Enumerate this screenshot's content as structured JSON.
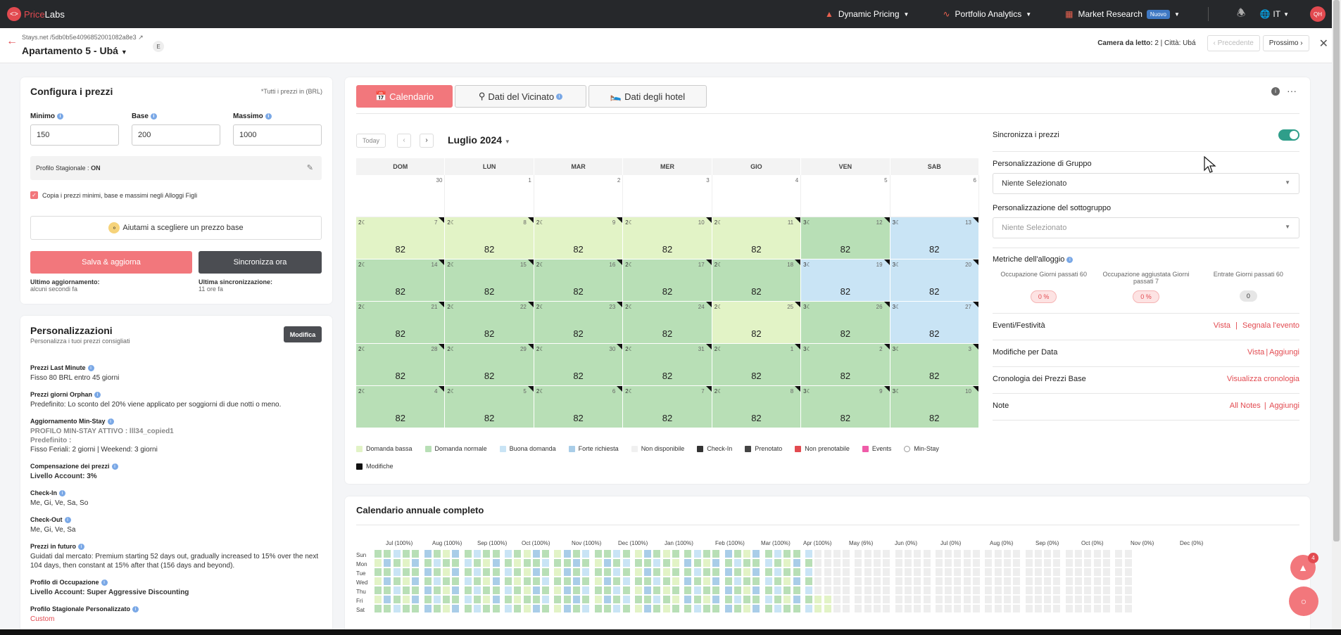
{
  "topbar": {
    "brand_a": "Price",
    "brand_b": "Labs",
    "nav": [
      {
        "icon": "fire-icon",
        "label": "Dynamic Pricing"
      },
      {
        "icon": "chart-line-icon",
        "label": "Portfolio Analytics"
      },
      {
        "icon": "grid-icon",
        "label": "Market Research",
        "badge": "Nuovo"
      }
    ],
    "lang": "IT",
    "avatar": "QH"
  },
  "subheader": {
    "listing_link": "Stays.net /5db0b5e4096852001082a8e3",
    "listing_name": "Apartamento 5 - Ubá",
    "badge": "E",
    "meta_label": "Camera da letto:",
    "meta_value": "2 | Città: Ubá",
    "prev": "Precedente",
    "next": "Prossimo"
  },
  "config": {
    "title": "Configura i prezzi",
    "note": "*Tutti i prezzi in (BRL)",
    "min_label": "Minimo",
    "min_value": "150",
    "base_label": "Base",
    "base_value": "200",
    "max_label": "Massimo",
    "max_value": "1000",
    "season_label": "Profilo Stagionale :",
    "season_value": "ON",
    "copy_label": "Copia i prezzi minimi, base e massimi negli Alloggi Figli",
    "help_label": "Aiutami a scegliere un prezzo base",
    "save_label": "Salva & aggiorna",
    "sync_label": "Sincronizza ora",
    "last_update_label": "Ultimo aggiornamento:",
    "last_update_value": "alcuni secondi fa",
    "last_sync_label": "Ultima sincronizzazione:",
    "last_sync_value": "11 ore fa"
  },
  "custom": {
    "title": "Personalizzazioni",
    "subtitle": "Personalizza i tuoi prezzi consigliati",
    "edit": "Modifica",
    "items": [
      {
        "label": "Prezzi Last Minute",
        "lines": [
          "Fisso 80 BRL entro 45 giorni"
        ]
      },
      {
        "label": "Prezzi giorni Orphan",
        "lines": [
          "Predefinito: Lo sconto del 20% viene applicato per soggiorni di due notti o meno."
        ]
      },
      {
        "label": "Aggiornamento Min-Stay",
        "lines": [
          "PROFILO MIN-STAY ATTIVO : lll34_copied1",
          "Predefinito :",
          "Fisso Feriali: 2 giorni | Weekend: 3 giorni"
        ]
      },
      {
        "label": "Compensazione dei prezzi",
        "lines": [
          "Livello Account: 3%"
        ]
      },
      {
        "label": "Check-In",
        "lines": [
          "Me, Gi, Ve, Sa, So"
        ]
      },
      {
        "label": "Check-Out",
        "lines": [
          "Me, Gi, Ve, Sa"
        ]
      },
      {
        "label": "Prezzi in futuro",
        "lines": [
          "Guidati dal mercato: Premium starting 52 days out, gradually increased to 15% over the next 104 days, then constant at 15% after that (156 days and beyond)."
        ]
      },
      {
        "label": "Profilo di Occupazione",
        "lines": [
          "Livello Account: Super Aggressive Discounting"
        ]
      },
      {
        "label": "Profilo Stagionale Personalizzato",
        "lines": [
          "Custom"
        ]
      }
    ]
  },
  "tabs": [
    {
      "icon": "calendar-icon",
      "label": "Calendario"
    },
    {
      "icon": "pin-icon",
      "label": "Dati del Vicinato"
    },
    {
      "icon": "bed-icon",
      "label": "Dati degli hotel"
    }
  ],
  "calendar": {
    "today": "Today",
    "month": "Luglio 2024",
    "days": [
      "DOM",
      "LUN",
      "MAR",
      "MER",
      "GIO",
      "VEN",
      "SAB"
    ],
    "colors": {
      "low": "#e2f3c6",
      "normal": "#b8dfb6",
      "good": "#c9e4f5",
      "strong": "#a9cde8",
      "na": "#f0f0f0"
    },
    "weeks": [
      [
        {
          "d": "30",
          "t": "empty"
        },
        {
          "d": "1",
          "t": "empty"
        },
        {
          "d": "2",
          "t": "empty"
        },
        {
          "d": "3",
          "t": "empty"
        },
        {
          "d": "4",
          "t": "empty"
        },
        {
          "d": "5",
          "t": "empty"
        },
        {
          "d": "6",
          "t": "empty"
        }
      ],
      [
        {
          "d": "7",
          "t": "low",
          "ms": "2",
          "p": "82"
        },
        {
          "d": "8",
          "t": "low",
          "ms": "2",
          "p": "82"
        },
        {
          "d": "9",
          "t": "low",
          "ms": "2",
          "p": "82"
        },
        {
          "d": "10",
          "t": "low",
          "ms": "2",
          "p": "82"
        },
        {
          "d": "11",
          "t": "low",
          "ms": "2",
          "p": "82"
        },
        {
          "d": "12",
          "t": "normal",
          "ms": "3",
          "p": "82"
        },
        {
          "d": "13",
          "t": "good",
          "ms": "3",
          "p": "82"
        }
      ],
      [
        {
          "d": "14",
          "t": "normal",
          "ms": "2",
          "p": "82"
        },
        {
          "d": "15",
          "t": "normal",
          "ms": "2",
          "p": "82"
        },
        {
          "d": "16",
          "t": "normal",
          "ms": "2",
          "p": "82"
        },
        {
          "d": "17",
          "t": "normal",
          "ms": "2",
          "p": "82"
        },
        {
          "d": "18",
          "t": "normal",
          "ms": "2",
          "p": "82"
        },
        {
          "d": "19",
          "t": "good",
          "ms": "3",
          "p": "82"
        },
        {
          "d": "20",
          "t": "good",
          "ms": "3",
          "p": "82"
        }
      ],
      [
        {
          "d": "21",
          "t": "normal",
          "ms": "2",
          "p": "82"
        },
        {
          "d": "22",
          "t": "normal",
          "ms": "2",
          "p": "82"
        },
        {
          "d": "23",
          "t": "normal",
          "ms": "2",
          "p": "82"
        },
        {
          "d": "24",
          "t": "normal",
          "ms": "2",
          "p": "82"
        },
        {
          "d": "25",
          "t": "low",
          "ms": "2",
          "p": "82"
        },
        {
          "d": "26",
          "t": "normal",
          "ms": "3",
          "p": "82"
        },
        {
          "d": "27",
          "t": "good",
          "ms": "3",
          "p": "82"
        }
      ],
      [
        {
          "d": "28",
          "t": "normal",
          "ms": "2",
          "p": "82"
        },
        {
          "d": "29",
          "t": "normal",
          "ms": "2",
          "p": "82"
        },
        {
          "d": "30",
          "t": "normal",
          "ms": "2",
          "p": "82"
        },
        {
          "d": "31",
          "t": "normal",
          "ms": "2",
          "p": "82"
        },
        {
          "d": "1",
          "t": "normal",
          "ms": "2",
          "p": "82"
        },
        {
          "d": "2",
          "t": "normal",
          "ms": "3",
          "p": "82"
        },
        {
          "d": "3",
          "t": "normal",
          "ms": "3",
          "p": "82"
        }
      ],
      [
        {
          "d": "4",
          "t": "normal",
          "ms": "2",
          "p": "82"
        },
        {
          "d": "5",
          "t": "normal",
          "ms": "2",
          "p": "82"
        },
        {
          "d": "6",
          "t": "normal",
          "ms": "2",
          "p": "82"
        },
        {
          "d": "7",
          "t": "normal",
          "ms": "2",
          "p": "82"
        },
        {
          "d": "8",
          "t": "normal",
          "ms": "2",
          "p": "82"
        },
        {
          "d": "9",
          "t": "normal",
          "ms": "3",
          "p": "82"
        },
        {
          "d": "10",
          "t": "normal",
          "ms": "3",
          "p": "82"
        }
      ]
    ],
    "legend": [
      {
        "label": "Domanda bassa",
        "color": "#e2f3c6"
      },
      {
        "label": "Domanda normale",
        "color": "#b8dfb6"
      },
      {
        "label": "Buona domanda",
        "color": "#c9e4f5"
      },
      {
        "label": "Forte richiesta",
        "color": "#a9cde8"
      },
      {
        "label": "Non disponibile",
        "color": "#f0f0f0"
      },
      {
        "label": "Check-In",
        "color": "#333"
      },
      {
        "label": "Prenotato",
        "color": "#444"
      },
      {
        "label": "Non prenotabile",
        "color": "#e24a50"
      },
      {
        "label": "Events",
        "color": "#ef5ca8"
      },
      {
        "label": "Min-Stay",
        "color": "#fff"
      },
      {
        "label": "Modifiche",
        "color": "#111"
      }
    ]
  },
  "right": {
    "sync_label": "Sincronizza i prezzi",
    "group_label": "Personalizzazione di Gruppo",
    "group_value": "Niente Selezionato",
    "subgroup_label": "Personalizzazione del sottogruppo",
    "subgroup_value": "Niente Selezionato",
    "metrics_label": "Metriche dell'alloggio",
    "metrics": [
      {
        "label": "Occupazione Giorni passati 60",
        "value": "0 %"
      },
      {
        "label": "Occupazione aggiustata Giorni passati 7",
        "value": "0 %"
      },
      {
        "label": "Entrate Giorni passati 60",
        "value": "0"
      }
    ],
    "events_label": "Eventi/Festività",
    "events_view": "Vista",
    "events_report": "Segnala l'evento",
    "date_mod_label": "Modifiche per Data",
    "date_mod_view": "Vista",
    "date_mod_add": "Aggiungi",
    "history_label": "Cronologia dei Prezzi Base",
    "history_link": "Visualizza cronologia",
    "notes_label": "Note",
    "notes_all": "All Notes",
    "notes_add": "Aggiungi",
    "sep": "|"
  },
  "annual": {
    "title": "Calendario annuale completo",
    "months": [
      "Jul (100%)",
      "Aug (100%)",
      "Sep (100%)",
      "Oct (100%)",
      "Nov (100%)",
      "Dec (100%)",
      "Jan (100%)",
      "Feb (100%)",
      "Mar (100%)",
      "Apr (100%)",
      "May (6%)",
      "Jun (0%)",
      "Jul (0%)",
      "Aug (0%)",
      "Sep (0%)",
      "Oct (0%)",
      "Nov (0%)",
      "Dec (0%)"
    ],
    "weekdays": [
      "Sun",
      "Mon",
      "Tue",
      "Wed",
      "Thu",
      "Fri",
      "Sat"
    ]
  },
  "chat_badge": "4"
}
